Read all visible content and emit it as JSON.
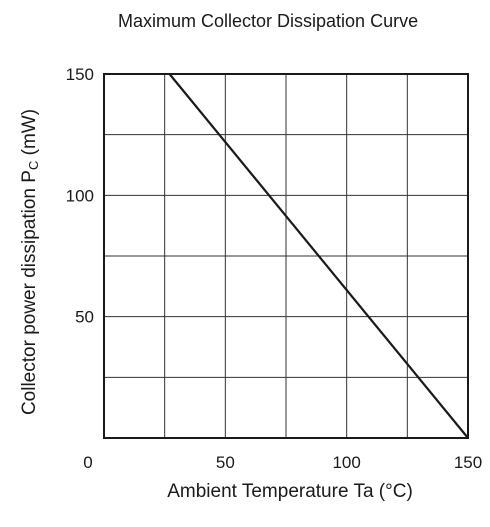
{
  "chart_data": {
    "type": "line",
    "title": "Maximum Collector Dissipation Curve",
    "xlabel": "Ambient Temperature  Ta  (°C)",
    "ylabel": "Collector power dissipation  P",
    "ylabel_subscript": "C",
    "ylabel_unit": "  (mW)",
    "xlim": [
      0,
      150
    ],
    "ylim": [
      0,
      150
    ],
    "x_ticks": [
      0,
      50,
      100,
      150
    ],
    "y_ticks": [
      50,
      100,
      150
    ],
    "x_gridlines": [
      25,
      50,
      75,
      100,
      125
    ],
    "y_gridlines": [
      25,
      50,
      75,
      100,
      125
    ],
    "grid": true,
    "series": [
      {
        "values": [
          [
            27,
            150
          ],
          [
            150,
            0
          ]
        ]
      }
    ]
  }
}
